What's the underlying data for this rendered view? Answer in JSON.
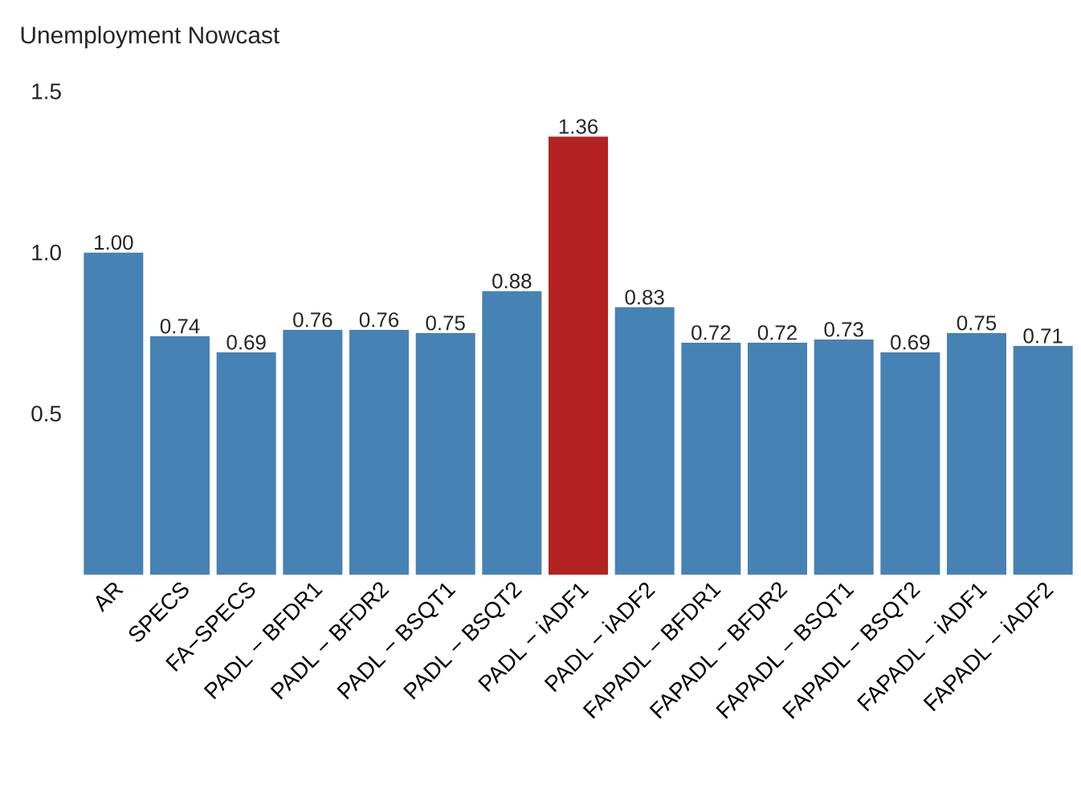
{
  "chart_data": {
    "type": "bar",
    "title": "Unemployment Nowcast",
    "categories": [
      "AR",
      "SPECS",
      "FA−SPECS",
      "PADL − BFDR1",
      "PADL − BFDR2",
      "PADL − BSQT1",
      "PADL − BSQT2",
      "PADL − iADF1",
      "PADL − iADF2",
      "FAPADL − BFDR1",
      "FAPADL − BFDR2",
      "FAPADL − BSQT1",
      "FAPADL − BSQT2",
      "FAPADL − iADF1",
      "FAPADL − iADF2"
    ],
    "values": [
      1.0,
      0.74,
      0.69,
      0.76,
      0.76,
      0.75,
      0.88,
      1.36,
      0.83,
      0.72,
      0.72,
      0.73,
      0.69,
      0.75,
      0.71
    ],
    "value_labels": [
      "1.00",
      "0.74",
      "0.69",
      "0.76",
      "0.76",
      "0.75",
      "0.88",
      "1.36",
      "0.83",
      "0.72",
      "0.72",
      "0.73",
      "0.69",
      "0.75",
      "0.71"
    ],
    "colors": [
      "#4682b4",
      "#4682b4",
      "#4682b4",
      "#4682b4",
      "#4682b4",
      "#4682b4",
      "#4682b4",
      "#b22222",
      "#4682b4",
      "#4682b4",
      "#4682b4",
      "#4682b4",
      "#4682b4",
      "#4682b4",
      "#4682b4"
    ],
    "ylim": [
      0,
      1.5
    ],
    "yticks": [
      0.5,
      {
        "value": 1,
        "label": "1.0"
      },
      1.5
    ]
  }
}
